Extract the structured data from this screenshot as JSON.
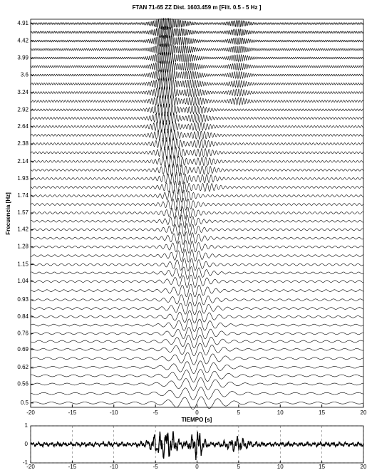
{
  "chart_data": [
    {
      "type": "waveform-stack",
      "title": "FTAN 71-65 ZZ  Dist. 1603.459 m    [Filt. 0.5 - 5 Hz ]",
      "xlabel": "TIEMPO [s]",
      "ylabel": "Frecuencia [Hz]",
      "xlim": [
        -20,
        20
      ],
      "xticks": [
        -20,
        -15,
        -10,
        -5,
        0,
        5,
        10,
        15,
        20
      ],
      "ylim": [
        0.487,
        5.04
      ],
      "log_y": true,
      "yticks": [
        4.91,
        4.42,
        3.99,
        3.6,
        3.24,
        2.92,
        2.64,
        2.38,
        2.14,
        1.93,
        1.74,
        1.57,
        1.42,
        1.28,
        1.15,
        1.04,
        0.93,
        0.84,
        0.76,
        0.69,
        0.62,
        0.56,
        0.5
      ],
      "color": "#000000"
    },
    {
      "type": "seismogram",
      "xlim": [
        -20,
        20
      ],
      "xticks": [
        -20,
        -15,
        -10,
        -5,
        0,
        5,
        10,
        15,
        20
      ],
      "ylim": [
        -1,
        1
      ],
      "yticks": [
        -1,
        0,
        1
      ],
      "grid": true,
      "color": "#000000"
    }
  ]
}
